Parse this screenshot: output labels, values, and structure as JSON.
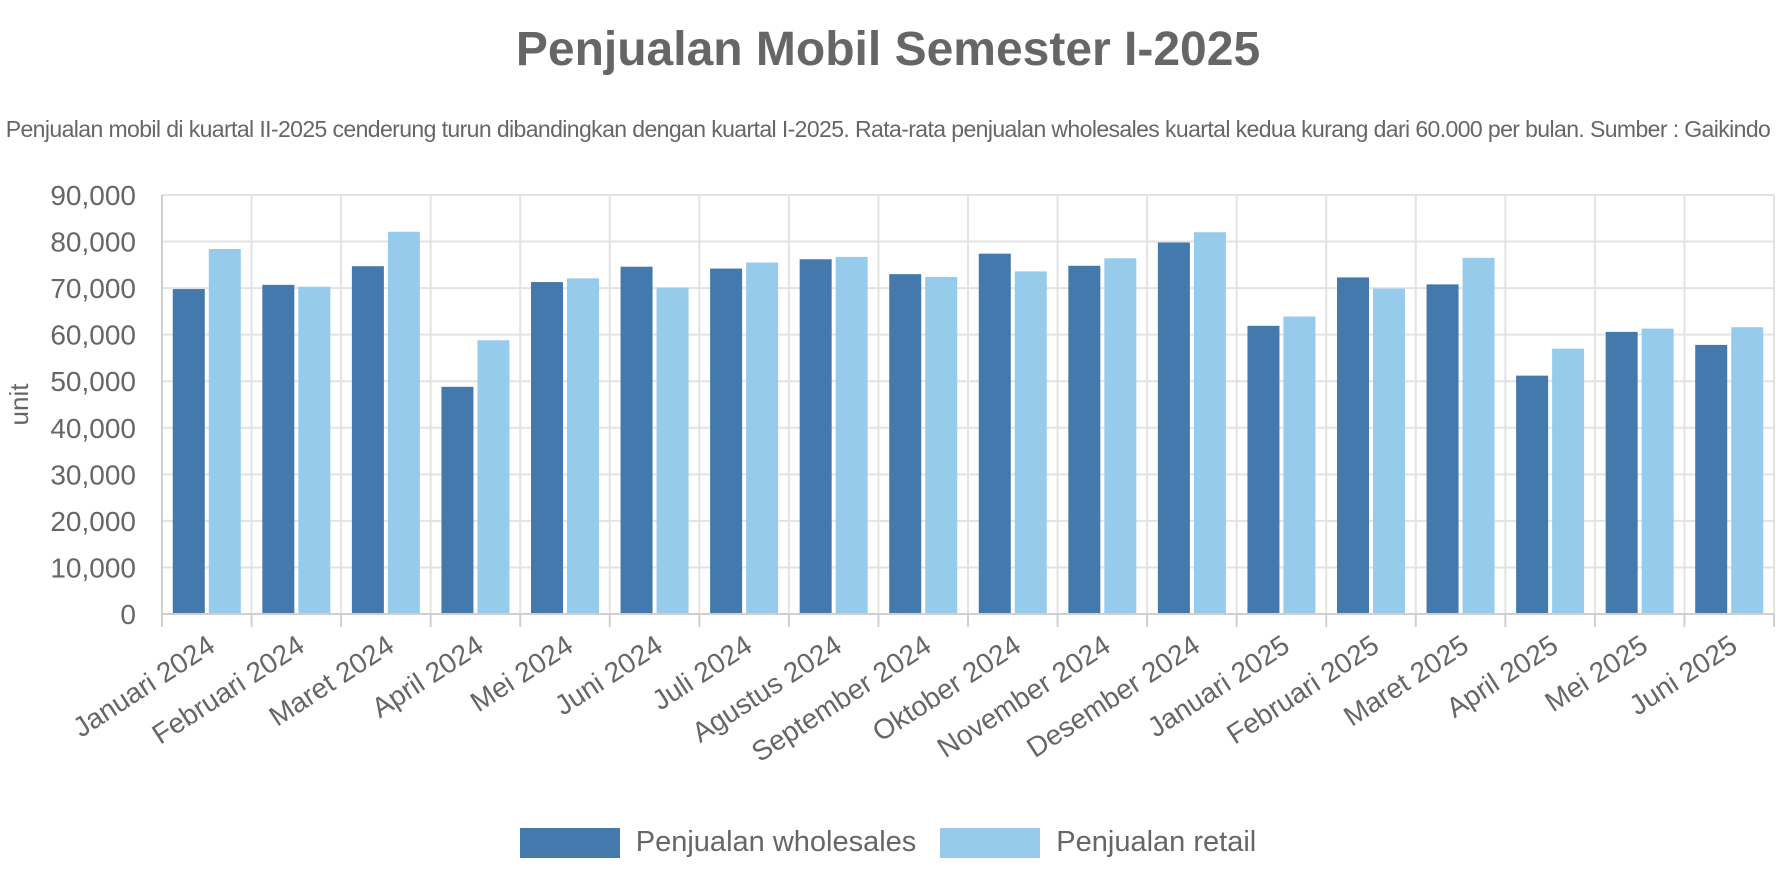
{
  "chart_data": {
    "type": "bar",
    "title": "Penjualan Mobil Semester I-2025",
    "subtitle": "Penjualan mobil di kuartal II-2025 cenderung turun dibandingkan dengan kuartal I-2025. Rata-rata penjualan wholesales kuartal kedua kurang dari 60.000 per bulan. Sumber : Gaikindo",
    "xlabel": "",
    "ylabel": "unit",
    "ylim": [
      0,
      90000
    ],
    "yticks": [
      "0",
      "10,000",
      "20,000",
      "30,000",
      "40,000",
      "50,000",
      "60,000",
      "70,000",
      "80,000",
      "90,000"
    ],
    "grid": true,
    "legend_position": "bottom-center",
    "categories": [
      "Januari 2024",
      "Februari 2024",
      "Maret 2024",
      "April 2024",
      "Mei 2024",
      "Juni 2024",
      "Juli 2024",
      "Agustus 2024",
      "September 2024",
      "Oktober 2024",
      "November 2024",
      "Desember 2024",
      "Januari 2025",
      "Februari 2025",
      "Maret 2025",
      "April 2025",
      "Mei 2025",
      "Juni 2025"
    ],
    "series": [
      {
        "name": "Penjualan wholesales",
        "color": "#4479ad",
        "values": [
          69800,
          70700,
          74700,
          48800,
          71300,
          74600,
          74200,
          76200,
          73000,
          77400,
          74800,
          79800,
          61900,
          72300,
          70800,
          51200,
          60600,
          57800
        ]
      },
      {
        "name": "Penjualan retail",
        "color": "#96cbec",
        "values": [
          78400,
          70300,
          82100,
          58800,
          72100,
          70100,
          75500,
          76700,
          72400,
          73600,
          76400,
          82000,
          63900,
          69900,
          76500,
          57000,
          61300,
          61600
        ]
      }
    ]
  }
}
